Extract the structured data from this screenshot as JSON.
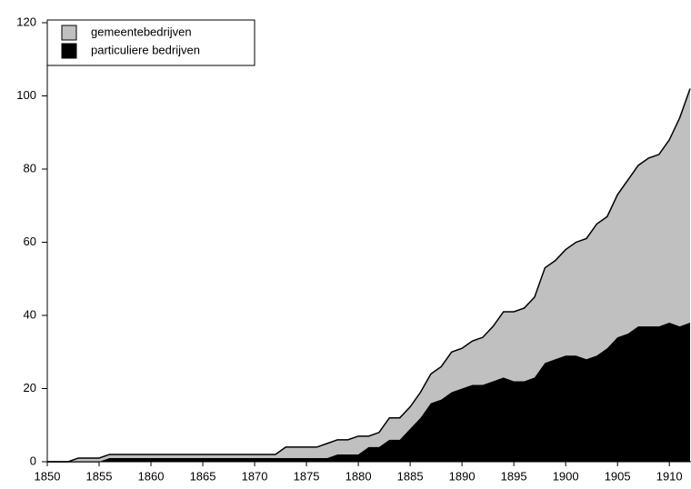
{
  "chart_data": {
    "type": "stacked-area",
    "x": [
      1850,
      1851,
      1852,
      1853,
      1854,
      1855,
      1856,
      1857,
      1858,
      1859,
      1860,
      1861,
      1862,
      1863,
      1864,
      1865,
      1866,
      1867,
      1868,
      1869,
      1870,
      1871,
      1872,
      1873,
      1874,
      1875,
      1876,
      1877,
      1878,
      1879,
      1880,
      1881,
      1882,
      1883,
      1884,
      1885,
      1886,
      1887,
      1888,
      1889,
      1890,
      1891,
      1892,
      1893,
      1894,
      1895,
      1896,
      1897,
      1898,
      1899,
      1900,
      1901,
      1902,
      1903,
      1904,
      1905,
      1906,
      1907,
      1908,
      1909,
      1910,
      1911,
      1912
    ],
    "series": [
      {
        "name": "gemeentebedrijven",
        "color": "#c0c0c0",
        "values": [
          0,
          0,
          0,
          1,
          1,
          1,
          1,
          1,
          1,
          1,
          1,
          1,
          1,
          1,
          1,
          1,
          1,
          1,
          1,
          1,
          1,
          1,
          1,
          3,
          3,
          3,
          3,
          4,
          4,
          4,
          5,
          3,
          4,
          6,
          6,
          6,
          7,
          8,
          9,
          11,
          11,
          12,
          13,
          15,
          18,
          19,
          20,
          22,
          26,
          27,
          29,
          31,
          33,
          36,
          36,
          39,
          42,
          44,
          46,
          47,
          50,
          57,
          64
        ]
      },
      {
        "name": "particuliere bedrijven",
        "color": "#000000",
        "values": [
          0,
          0,
          0,
          0,
          0,
          0,
          1,
          1,
          1,
          1,
          1,
          1,
          1,
          1,
          1,
          1,
          1,
          1,
          1,
          1,
          1,
          1,
          1,
          1,
          1,
          1,
          1,
          1,
          2,
          2,
          2,
          4,
          4,
          6,
          6,
          9,
          12,
          16,
          17,
          19,
          20,
          21,
          21,
          22,
          23,
          22,
          22,
          23,
          27,
          28,
          29,
          29,
          28,
          29,
          31,
          34,
          35,
          37,
          37,
          37,
          38,
          37,
          38
        ]
      }
    ],
    "xlim": [
      1850,
      1912
    ],
    "xticks": [
      1850,
      1855,
      1860,
      1865,
      1870,
      1875,
      1880,
      1885,
      1890,
      1895,
      1900,
      1905,
      1910
    ],
    "ylim": [
      0,
      120
    ],
    "yticks": [
      0,
      20,
      40,
      60,
      80,
      100,
      120
    ]
  }
}
